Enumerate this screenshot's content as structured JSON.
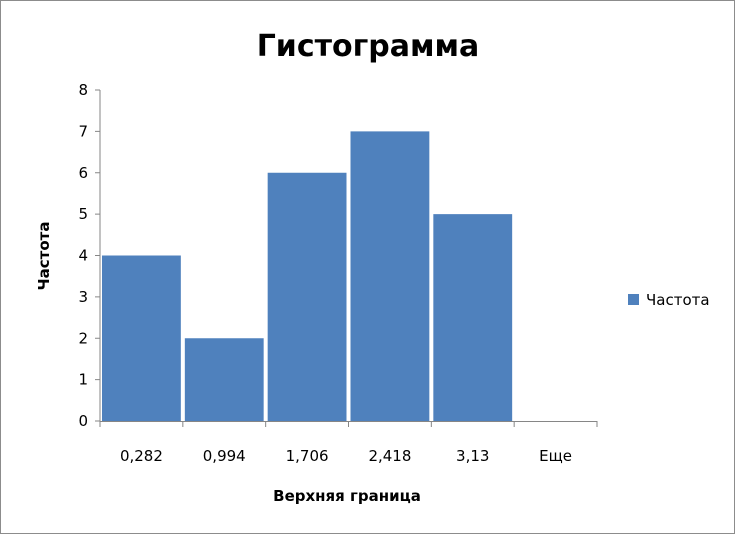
{
  "chart_data": {
    "type": "bar",
    "title": "Гистограмма",
    "xlabel": "Верхняя граница",
    "ylabel": "Частота",
    "categories": [
      "0,282",
      "0,994",
      "1,706",
      "2,418",
      "3,13",
      "Еще"
    ],
    "series": [
      {
        "name": "Частота",
        "color": "#4f81bd",
        "values": [
          4,
          2,
          6,
          7,
          5,
          0
        ]
      }
    ],
    "ylim": [
      0,
      8
    ],
    "yticks": [
      "0",
      "1",
      "2",
      "3",
      "4",
      "5",
      "6",
      "7",
      "8"
    ],
    "grid": false,
    "legend": "right"
  }
}
